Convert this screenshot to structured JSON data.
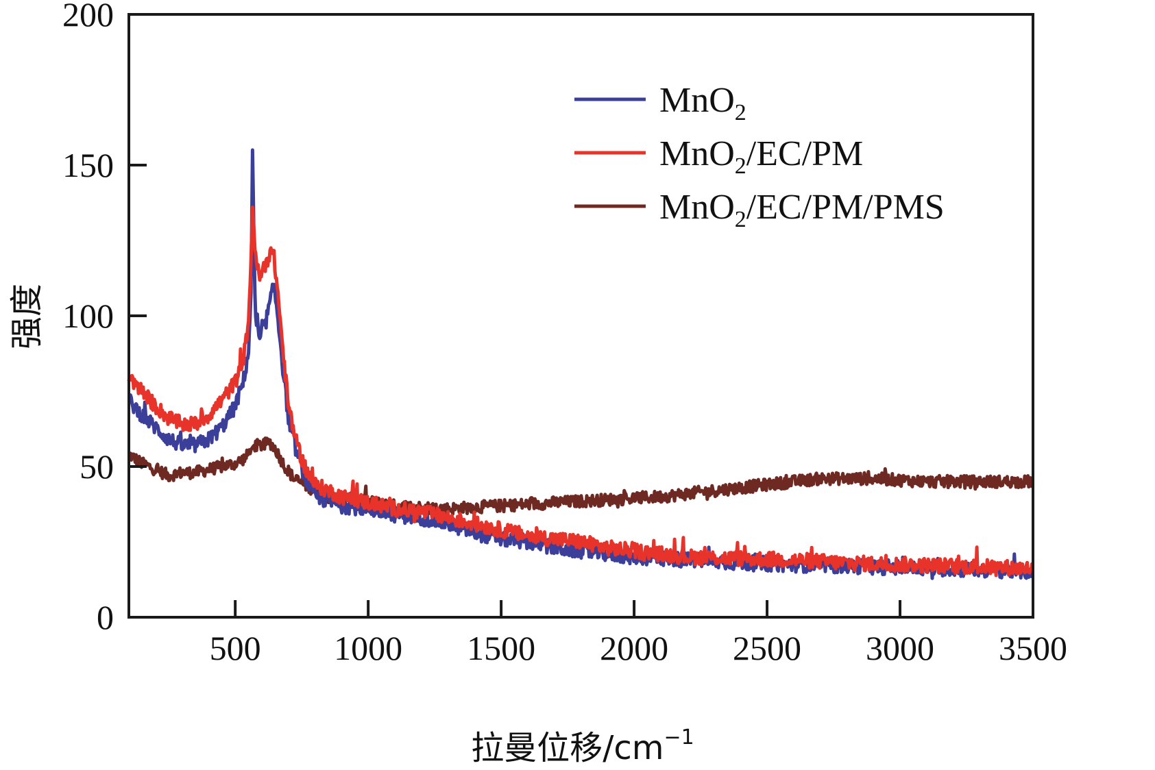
{
  "chart_data": {
    "type": "line",
    "title": "",
    "xlabel": "拉曼位移/cm",
    "xlabel_superscript": "−1",
    "ylabel": "强度",
    "xlim": [
      100,
      3500
    ],
    "ylim": [
      0,
      200
    ],
    "xticks": [
      500,
      1000,
      1500,
      2000,
      2500,
      3000,
      3500
    ],
    "xtick_labels": [
      "500",
      "1000",
      "1500",
      "2000",
      "2500",
      "3000",
      "3500"
    ],
    "yticks": [
      0,
      50,
      100,
      150,
      200
    ],
    "ytick_labels": [
      "0",
      "50",
      "100",
      "150",
      "200"
    ],
    "grid": false,
    "legend_position": "top-right",
    "series": [
      {
        "name": "MnO2",
        "label_main": "MnO",
        "label_sub": "2",
        "label_suffix": "",
        "color": "#3b3f9a",
        "noise": 2.5,
        "x": [
          100,
          150,
          200,
          250,
          300,
          350,
          400,
          450,
          500,
          530,
          550,
          560,
          565,
          575,
          590,
          610,
          630,
          645,
          660,
          680,
          700,
          730,
          760,
          800,
          900,
          1000,
          1100,
          1200,
          1300,
          1400,
          1500,
          1600,
          1700,
          1800,
          1900,
          2000,
          2200,
          2400,
          2600,
          2800,
          3000,
          3200,
          3400,
          3500
        ],
        "y": [
          72,
          67,
          63,
          59,
          57,
          57,
          59,
          63,
          70,
          78,
          88,
          110,
          155,
          100,
          92,
          96,
          104,
          110,
          100,
          82,
          66,
          55,
          47,
          40,
          37,
          36,
          34,
          33,
          31,
          28,
          26,
          25,
          23,
          22,
          21,
          20,
          19,
          18,
          17.5,
          17,
          16.5,
          16,
          15.5,
          15
        ]
      },
      {
        "name": "MnO2/EC/PM",
        "label_main": "MnO",
        "label_sub": "2",
        "label_suffix": "/EC/PM",
        "color": "#e8332a",
        "noise": 2.5,
        "x": [
          100,
          150,
          200,
          250,
          300,
          350,
          400,
          450,
          500,
          530,
          550,
          560,
          565,
          575,
          590,
          610,
          630,
          645,
          660,
          680,
          700,
          730,
          760,
          800,
          900,
          1000,
          1100,
          1200,
          1300,
          1400,
          1500,
          1600,
          1700,
          1800,
          1900,
          2000,
          2200,
          2400,
          2600,
          2800,
          3000,
          3200,
          3400,
          3500
        ],
        "y": [
          80,
          75,
          70,
          66,
          64,
          64,
          67,
          72,
          78,
          85,
          98,
          120,
          136,
          122,
          112,
          116,
          121,
          120,
          108,
          88,
          70,
          58,
          50,
          44,
          40,
          38,
          36,
          35,
          33,
          31,
          29,
          27,
          26,
          25,
          23,
          22,
          20,
          19.5,
          19,
          18,
          17.5,
          17,
          16.5,
          16
        ]
      },
      {
        "name": "MnO2/EC/PM/PMS",
        "label_main": "MnO",
        "label_sub": "2",
        "label_suffix": "/EC/PM/PMS",
        "color": "#6e2a22",
        "noise": 2.0,
        "x": [
          100,
          150,
          200,
          250,
          300,
          350,
          400,
          450,
          500,
          540,
          570,
          600,
          630,
          650,
          680,
          720,
          780,
          850,
          950,
          1100,
          1300,
          1500,
          1700,
          1900,
          2100,
          2300,
          2500,
          2700,
          2900,
          3100,
          3300,
          3500
        ],
        "y": [
          54,
          51,
          49,
          47,
          48,
          48,
          49,
          50,
          51,
          53,
          57,
          57,
          58,
          56,
          51,
          46,
          43,
          40,
          39,
          37,
          36,
          37,
          38,
          39,
          40,
          42,
          44,
          46,
          46,
          45,
          45,
          45
        ]
      }
    ]
  }
}
